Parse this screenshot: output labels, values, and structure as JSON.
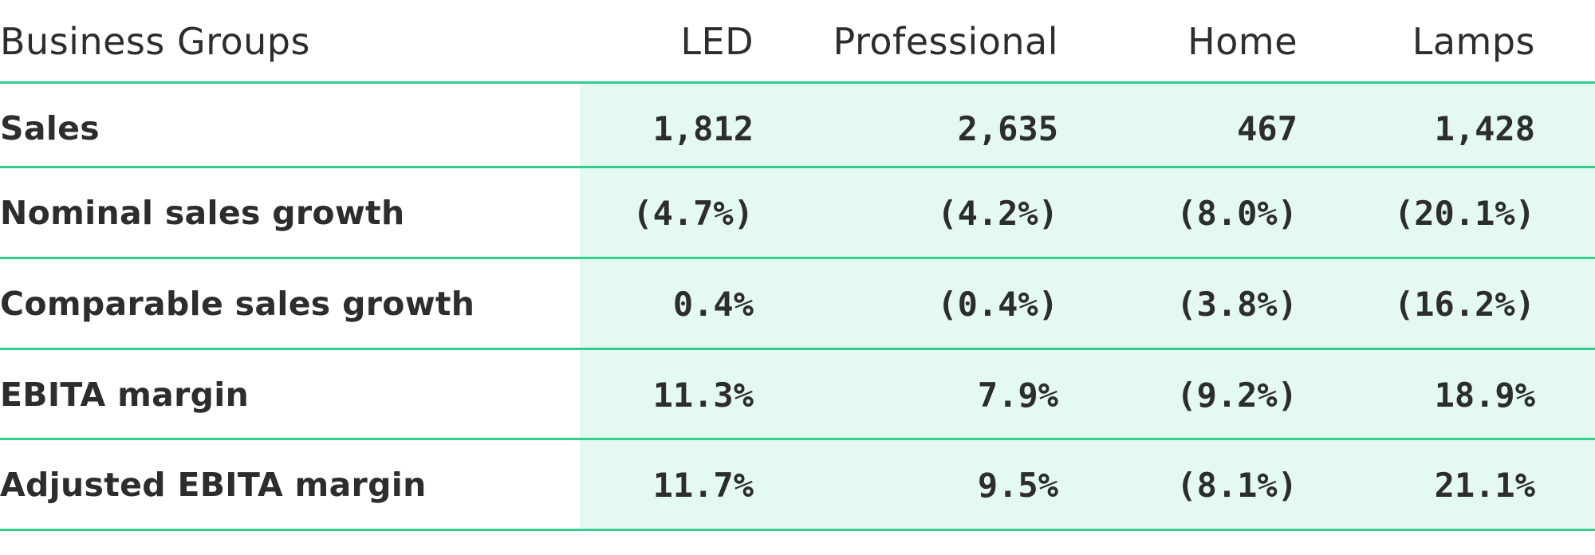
{
  "table": {
    "header": {
      "label": "Business Groups",
      "columns": [
        "LED",
        "Professional",
        "Home",
        "Lamps"
      ]
    },
    "rows": [
      {
        "label": "Sales",
        "values": [
          "1,812",
          "2,635",
          "467",
          "1,428"
        ]
      },
      {
        "label": "Nominal sales growth",
        "values": [
          "(4.7%)",
          "(4.2%)",
          "(8.0%)",
          "(20.1%)"
        ]
      },
      {
        "label": "Comparable sales growth",
        "values": [
          "0.4%",
          "(0.4%)",
          "(3.8%)",
          "(16.2%)"
        ]
      },
      {
        "label": "EBITA margin",
        "values": [
          "11.3%",
          "7.9%",
          "(9.2%)",
          "18.9%"
        ]
      },
      {
        "label": "Adjusted EBITA margin",
        "values": [
          "11.7%",
          "9.5%",
          "(8.1%)",
          "21.1%"
        ]
      }
    ]
  },
  "colors": {
    "rule": "#2ecf8f",
    "data_background": "#e4faf0",
    "text": "#2d2d2d"
  }
}
